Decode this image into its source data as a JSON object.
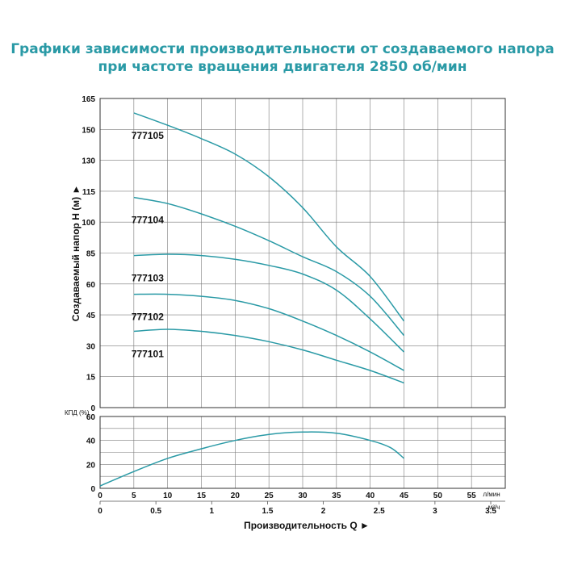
{
  "title_line1": "Графики зависимости производительности от создаваемого напора",
  "title_line2": "при частоте вращения двигателя 2850 об/мин",
  "chart_data": [
    {
      "type": "line",
      "ylabel": "Создаваемый напор H (м) ►",
      "ylim": [
        0,
        165
      ],
      "yticks": [
        0,
        15,
        30,
        45,
        60,
        85,
        100,
        115,
        130,
        150,
        165
      ],
      "xlim": [
        0,
        60
      ],
      "grid": true,
      "series": [
        {
          "name": "777105",
          "x": [
            5,
            10,
            15,
            20,
            25,
            30,
            35,
            40,
            45
          ],
          "y": [
            158,
            152,
            144,
            134,
            122,
            107,
            88,
            66,
            42
          ]
        },
        {
          "name": "777104",
          "x": [
            5,
            10,
            15,
            20,
            25,
            30,
            35,
            40,
            45
          ],
          "y": [
            112,
            109,
            104,
            98,
            91,
            82,
            70,
            54,
            35
          ]
        },
        {
          "name": "777103",
          "x": [
            5,
            10,
            15,
            20,
            25,
            30,
            35,
            40,
            45
          ],
          "y": [
            83,
            84,
            83,
            80,
            75,
            68,
            57,
            43,
            27
          ]
        },
        {
          "name": "777102",
          "x": [
            5,
            10,
            15,
            20,
            25,
            30,
            35,
            40,
            45
          ],
          "y": [
            55,
            55,
            54,
            52,
            48,
            42,
            35,
            27,
            18
          ]
        },
        {
          "name": "777101",
          "x": [
            5,
            10,
            15,
            20,
            25,
            30,
            35,
            40,
            45
          ],
          "y": [
            37,
            38,
            37,
            35,
            32,
            28,
            23,
            18,
            12
          ]
        }
      ]
    },
    {
      "type": "line",
      "ylabel": "КПД (%)",
      "ylim": [
        0,
        60
      ],
      "yticks": [
        0,
        20,
        40,
        60
      ],
      "xlim": [
        0,
        60
      ],
      "grid": true,
      "series": [
        {
          "x": [
            0,
            5,
            10,
            15,
            20,
            25,
            30,
            35,
            40,
            43,
            45
          ],
          "y": [
            2,
            14,
            25,
            33,
            40,
            45,
            47,
            46,
            40,
            34,
            25
          ]
        }
      ]
    }
  ],
  "x_axis": {
    "lmin_ticks": [
      "0",
      "5",
      "10",
      "15",
      "20",
      "25",
      "30",
      "35",
      "40",
      "45",
      "50",
      "55"
    ],
    "lmin_unit": "л/мин",
    "m3h_ticks": [
      "0",
      "0.5",
      "1",
      "1.5",
      "2",
      "2.5",
      "3",
      "3.5"
    ],
    "m3h_unit": "м³/ч",
    "label": "Производительность Q ►"
  },
  "colors": {
    "curve": "#2a9aa6",
    "title": "#2a9aa6",
    "grid": "#7a7a7a"
  }
}
